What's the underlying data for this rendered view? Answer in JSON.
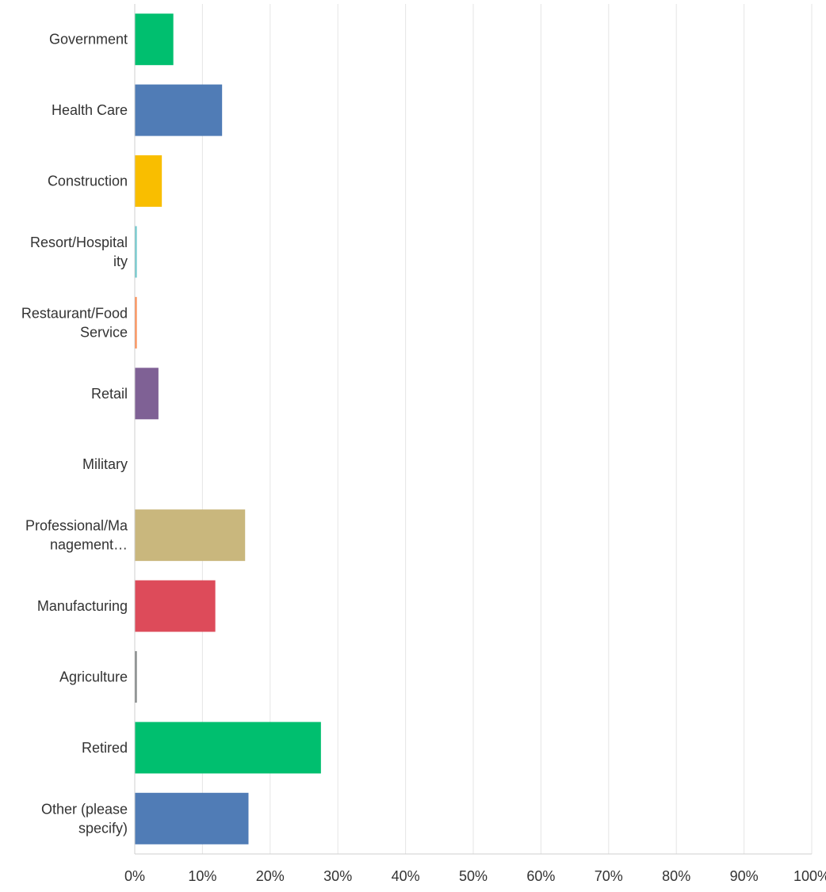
{
  "chart_data": {
    "type": "bar",
    "orientation": "horizontal",
    "categories": [
      "Government",
      "Health Care",
      "Construction",
      "Resort/Hospitality",
      "Restaurant/Food Service",
      "Retail",
      "Military",
      "Professional/Management…",
      "Manufacturing",
      "Agriculture",
      "Retired",
      "Other (please specify)"
    ],
    "category_display_lines": [
      [
        "Government"
      ],
      [
        "Health Care"
      ],
      [
        "Construction"
      ],
      [
        "Resort/Hospital",
        "ity"
      ],
      [
        "Restaurant/Food",
        "Service"
      ],
      [
        "Retail"
      ],
      [
        "Military"
      ],
      [
        "Professional/Ma",
        "nagement…"
      ],
      [
        "Manufacturing"
      ],
      [
        "Agriculture"
      ],
      [
        "Retired"
      ],
      [
        "Other (please",
        "specify)"
      ]
    ],
    "values": [
      5.7,
      12.9,
      4.0,
      0.3,
      0.3,
      3.5,
      0.0,
      16.3,
      11.9,
      0.3,
      27.5,
      16.8
    ],
    "colors": [
      "#00bf6f",
      "#507cb6",
      "#f9be00",
      "#6bc8cd",
      "#ff8b4f",
      "#7f6195",
      "#a0a0a0",
      "#c9b77d",
      "#dd4b5a",
      "#7d8282",
      "#00bf6f",
      "#507cb6"
    ],
    "xlim": [
      0,
      100
    ],
    "x_ticks": [
      0,
      10,
      20,
      30,
      40,
      50,
      60,
      70,
      80,
      90,
      100
    ],
    "x_tick_labels": [
      "0%",
      "10%",
      "20%",
      "30%",
      "40%",
      "50%",
      "60%",
      "70%",
      "80%",
      "90%",
      "100%"
    ],
    "grid": true,
    "legend": "none",
    "title": "",
    "xlabel": "",
    "ylabel": ""
  }
}
